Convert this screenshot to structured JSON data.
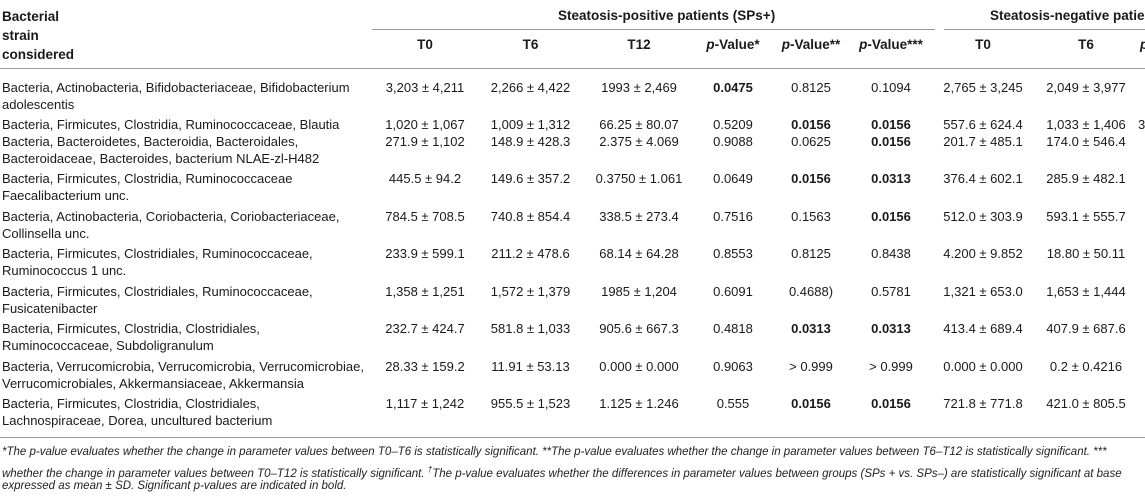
{
  "header": {
    "strain_col_lines": [
      "Bacterial",
      "strain",
      "considered"
    ],
    "group_pos": "Steatosis-positive patients (SPs+)",
    "group_neg": "Steatosis-negative patie",
    "cols": {
      "t0": "T0",
      "t6": "T6",
      "t12": "T12",
      "p1": "p",
      "p1s": "-Value*",
      "p2": "p",
      "p2s": "-Value**",
      "p3": "p",
      "p3s": "-Value***",
      "n_t0": "T0",
      "n_t6": "T6",
      "n_cut": "p"
    }
  },
  "rows": [
    {
      "strain": "Bacteria, Actinobacteria, Bifidobacteriaceae, Bifidobacterium adolescentis",
      "t0": "3,203 ± 4,211",
      "t6": "2,266 ± 4,422",
      "t12": "1993 ± 2,469",
      "p1": "0.0475",
      "p2": "0.8125",
      "p3": "0.1094",
      "n_t0": "2,765 ± 3,245",
      "n_t6": "2,049 ± 3,977",
      "n_cut": ""
    },
    {
      "strain": "Bacteria, Firmicutes, Clostridia, Ruminococcaceae, Blautia",
      "t0": "1,020 ± 1,067",
      "t6": "1,009 ± 1,312",
      "t12": "66.25 ± 80.07",
      "p1": "0.5209",
      "p2": "0.0156",
      "p3": "0.0156",
      "n_t0": "557.6 ± 624.4",
      "n_t6": "1,033 ± 1,406",
      "n_cut": "3"
    },
    {
      "strain": "Bacteria, Bacteroidetes, Bacteroidia, Bacteroidales, Bacteroidaceae, Bacteroides, bacterium NLAE-zl-H482",
      "t0": "271.9 ± 1,102",
      "t6": "148.9 ± 428.3",
      "t12": "2.375 ± 4.069",
      "p1": "0.9088",
      "p2": "0.0625",
      "p3": "0.0156",
      "n_t0": "201.7 ± 485.1",
      "n_t6": "174.0 ± 546.4",
      "n_cut": ""
    },
    {
      "strain": "Bacteria, Firmicutes, Clostridia, Ruminococcaceae Faecalibacterium unc.",
      "t0": "445.5 ± 94.2",
      "t6": "149.6 ± 357.2",
      "t12": "0.3750 ± 1.061",
      "p1": "0.0649",
      "p2": "0.0156",
      "p3": "0.0313",
      "n_t0": "376.4 ± 602.1",
      "n_t6": "285.9 ± 482.1",
      "n_cut": ""
    },
    {
      "strain": "Bacteria, Actinobacteria, Coriobacteria, Coriobacteriaceae, Collinsella unc.",
      "t0": "784.5 ± 708.5",
      "t6": "740.8 ± 854.4",
      "t12": "338.5 ± 273.4",
      "p1": "0.7516",
      "p2": "0.1563",
      "p3": "0.0156",
      "n_t0": "512.0 ± 303.9",
      "n_t6": "593.1 ± 555.7",
      "n_cut": ""
    },
    {
      "strain": "Bacteria, Firmicutes, Clostridiales, Ruminococcaceae, Ruminococcus 1 unc.",
      "t0": "233.9 ± 599.1",
      "t6": "211.2 ± 478.6",
      "t12": "68.14 ± 64.28",
      "p1": "0.8553",
      "p2": "0.8125",
      "p3": "0.8438",
      "n_t0": "4.200 ± 9.852",
      "n_t6": "18.80 ± 50.11",
      "n_cut": ""
    },
    {
      "strain": "Bacteria, Firmicutes, Clostridiales, Ruminococcaceae, Fusicatenibacter",
      "t0": "1,358 ± 1,251",
      "t6": "1,572 ± 1,379",
      "t12": "1985 ± 1,204",
      "p1": "0.6091",
      "p2": "0.4688)",
      "p3": "0.5781",
      "n_t0": "1,321 ± 653.0",
      "n_t6": "1,653 ± 1,444",
      "n_cut": ""
    },
    {
      "strain": "Bacteria, Firmicutes, Clostridia, Clostridiales, Ruminococcaceae, Subdoligranulum",
      "t0": "232.7 ± 424.7",
      "t6": "581.8 ± 1,033",
      "t12": "905.6 ± 667.3",
      "p1": "0.4818",
      "p2": "0.0313",
      "p3": "0.0313",
      "n_t0": "413.4 ± 689.4",
      "n_t6": "407.9 ± 687.6",
      "n_cut": ""
    },
    {
      "strain": "Bacteria, Verrucomicrobia, Verrucomicrobia, Verrucomicrobiae, Verrucomicrobiales, Akkermansiaceae, Akkermansia",
      "t0": "28.33 ± 159.2",
      "t6": "11.91 ± 53.13",
      "t12": "0.000 ± 0.000",
      "p1": "0.9063",
      "p2": "> 0.999",
      "p3": "> 0.999",
      "n_t0": "0.000 ± 0.000",
      "n_t6": "0.2 ± 0.4216",
      "n_cut": ""
    },
    {
      "strain": "Bacteria, Firmicutes, Clostridia, Clostridiales, Lachnospiraceae, Dorea, uncultured bacterium",
      "t0": "1,117 ± 1,242",
      "t6": "955.5 ± 1,523",
      "t12": "1.125 ± 1.246",
      "p1": "0.555",
      "p2": "0.0156",
      "p3": "0.0156",
      "n_t0": "721.8 ± 771.8",
      "n_t6": "421.0 ± 805.5",
      "n_cut": ""
    }
  ],
  "bold": {
    "p1": [
      true,
      false,
      false,
      false,
      false,
      false,
      false,
      false,
      false,
      false
    ],
    "p2": [
      false,
      true,
      false,
      true,
      false,
      false,
      false,
      true,
      false,
      true
    ],
    "p3": [
      false,
      true,
      true,
      true,
      true,
      false,
      false,
      true,
      false,
      true
    ]
  },
  "footnotes": [
    "*The p-value evaluates whether the change in parameter values between T0–T6 is statistically significant. **The p-value evaluates whether the change in parameter values between T6–T12 is statistically significant. ***",
    "whether the change in parameter values between T0–T12 is statistically significant. †The p-value evaluates whether the differences in parameter values between groups (SPs + vs. SPs–) are statistically significant at base",
    "expressed as mean ± SD. Significant p-values are indicated in bold."
  ]
}
